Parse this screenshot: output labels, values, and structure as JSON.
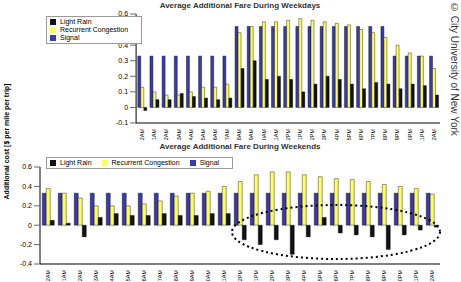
{
  "chart_data": [
    {
      "type": "bar",
      "title": "Average Additional Fare During Weekdays",
      "categories": [
        "12AM",
        "1AM",
        "2AM",
        "3AM",
        "4AM",
        "5AM",
        "6AM",
        "7AM",
        "8AM",
        "9AM",
        "10AM",
        "11AM",
        "12PM",
        "1PM",
        "2PM",
        "3PM",
        "4PM",
        "5PM",
        "6PM",
        "7PM",
        "8PM",
        "9PM",
        "10PM",
        "11PM",
        "12AM"
      ],
      "series": [
        {
          "name": "Signal",
          "color": "#3a3ab0",
          "values": [
            0.33,
            0.33,
            0.33,
            0.33,
            0.33,
            0.33,
            0.33,
            0.33,
            0.52,
            0.52,
            0.52,
            0.52,
            0.52,
            0.52,
            0.52,
            0.52,
            0.52,
            0.52,
            0.52,
            0.52,
            0.52,
            0.33,
            0.33,
            0.33,
            0.33
          ]
        },
        {
          "name": "Recurrent Congestion",
          "color": "#ffff5a",
          "values": [
            0.13,
            0.1,
            0.08,
            0.08,
            0.1,
            0.13,
            0.13,
            0.15,
            0.48,
            0.52,
            0.55,
            0.55,
            0.56,
            0.57,
            0.56,
            0.55,
            0.54,
            0.53,
            0.5,
            0.48,
            0.45,
            0.4,
            0.35,
            0.33,
            0.25
          ]
        },
        {
          "name": "Light Rain",
          "color": "#111111",
          "values": [
            -0.02,
            0.05,
            0.05,
            0.09,
            0.07,
            0.06,
            0.05,
            0.06,
            0.25,
            0.3,
            0.18,
            0.2,
            0.18,
            0.1,
            0.15,
            0.2,
            0.18,
            0.15,
            0.12,
            0.16,
            0.15,
            0.12,
            0.15,
            0.14,
            0.08
          ]
        }
      ],
      "ylim": [
        -0.1,
        0.6
      ],
      "yticks": [
        -0.1,
        0,
        0.1,
        0.2,
        0.3,
        0.4,
        0.5,
        0.6
      ],
      "grid": false,
      "legend": "upper left"
    },
    {
      "type": "bar",
      "title": "Average Additional Fare During Weekends",
      "y_label": "Additional cost [$ per mile per trip]",
      "categories": [
        "12AM",
        "1AM",
        "2AM",
        "3AM",
        "4AM",
        "5AM",
        "6AM",
        "7AM",
        "8AM",
        "9AM",
        "10AM",
        "11AM",
        "12PM",
        "1PM",
        "2PM",
        "3PM",
        "4PM",
        "5PM",
        "6PM",
        "7PM",
        "8PM",
        "9PM",
        "10PM",
        "11PM",
        "12AM"
      ],
      "series": [
        {
          "name": "Signal",
          "color": "#3a3ab0",
          "values": [
            0.33,
            0.33,
            0.33,
            0.33,
            0.33,
            0.33,
            0.33,
            0.33,
            0.33,
            0.33,
            0.33,
            0.33,
            0.33,
            0.33,
            0.33,
            0.33,
            0.33,
            0.33,
            0.33,
            0.33,
            0.33,
            0.33,
            0.33,
            0.33,
            0.33
          ]
        },
        {
          "name": "Recurrent Congestion",
          "color": "#ffff5a",
          "values": [
            0.38,
            0.33,
            0.28,
            0.2,
            0.2,
            0.2,
            0.22,
            0.25,
            0.3,
            0.33,
            0.35,
            0.4,
            0.45,
            0.52,
            0.55,
            0.55,
            0.52,
            0.5,
            0.48,
            0.47,
            0.45,
            0.42,
            0.4,
            0.38,
            0.32
          ]
        },
        {
          "name": "Light Rain",
          "color": "#111111",
          "values": [
            0.05,
            0.02,
            -0.12,
            0.08,
            0.12,
            0.1,
            0.1,
            0.12,
            0.1,
            0.1,
            0.12,
            0.12,
            -0.15,
            -0.2,
            -0.15,
            -0.3,
            -0.12,
            0.08,
            -0.08,
            -0.1,
            -0.12,
            -0.25,
            -0.1,
            -0.05,
            -0.02
          ]
        }
      ],
      "ylim": [
        -0.4,
        0.6
      ],
      "yticks": [
        -0.4,
        -0.2,
        0,
        0.2,
        0.4,
        0.6
      ],
      "grid": false,
      "legend": "upper left"
    }
  ],
  "watermark": "© City University of New York"
}
